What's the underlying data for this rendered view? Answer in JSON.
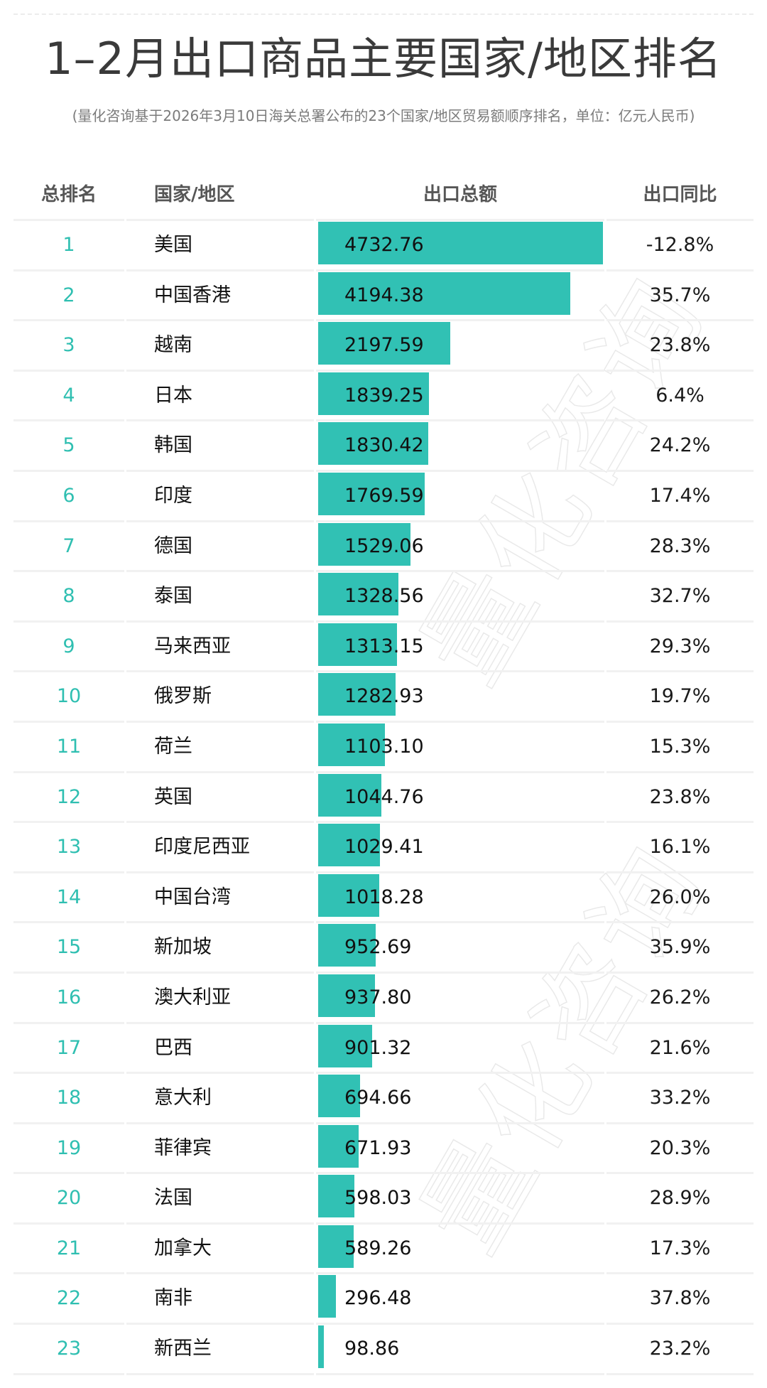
{
  "title": "1–2月出口商品主要国家/地区排名",
  "subtitle": "(量化咨询基于2026年3月10日海关总署公布的23个国家/地区贸易额顺序排名，单位：亿元人民币)",
  "watermark": "量化咨询",
  "colors": {
    "bar": "#31c1b4",
    "rank": "#2fbfb1",
    "header": "#565656",
    "divider": "#f1f1f1"
  },
  "table": {
    "headers": {
      "rank": "总排名",
      "country": "国家/地区",
      "value": "出口总额",
      "yoy": "出口同比"
    },
    "rows": [
      {
        "rank": "1",
        "country": "美国",
        "value": "4732.76",
        "yoy": "-12.8%"
      },
      {
        "rank": "2",
        "country": "中国香港",
        "value": "4194.38",
        "yoy": "35.7%"
      },
      {
        "rank": "3",
        "country": "越南",
        "value": "2197.59",
        "yoy": "23.8%"
      },
      {
        "rank": "4",
        "country": "日本",
        "value": "1839.25",
        "yoy": "6.4%"
      },
      {
        "rank": "5",
        "country": "韩国",
        "value": "1830.42",
        "yoy": "24.2%"
      },
      {
        "rank": "6",
        "country": "印度",
        "value": "1769.59",
        "yoy": "17.4%"
      },
      {
        "rank": "7",
        "country": "德国",
        "value": "1529.06",
        "yoy": "28.3%"
      },
      {
        "rank": "8",
        "country": "泰国",
        "value": "1328.56",
        "yoy": "32.7%"
      },
      {
        "rank": "9",
        "country": "马来西亚",
        "value": "1313.15",
        "yoy": "29.3%"
      },
      {
        "rank": "10",
        "country": "俄罗斯",
        "value": "1282.93",
        "yoy": "19.7%"
      },
      {
        "rank": "11",
        "country": "荷兰",
        "value": "1103.10",
        "yoy": "15.3%"
      },
      {
        "rank": "12",
        "country": "英国",
        "value": "1044.76",
        "yoy": "23.8%"
      },
      {
        "rank": "13",
        "country": "印度尼西亚",
        "value": "1029.41",
        "yoy": "16.1%"
      },
      {
        "rank": "14",
        "country": "中国台湾",
        "value": "1018.28",
        "yoy": "26.0%"
      },
      {
        "rank": "15",
        "country": "新加坡",
        "value": "952.69",
        "yoy": "35.9%"
      },
      {
        "rank": "16",
        "country": "澳大利亚",
        "value": "937.80",
        "yoy": "26.2%"
      },
      {
        "rank": "17",
        "country": "巴西",
        "value": "901.32",
        "yoy": "21.6%"
      },
      {
        "rank": "18",
        "country": "意大利",
        "value": "694.66",
        "yoy": "33.2%"
      },
      {
        "rank": "19",
        "country": "菲律宾",
        "value": "671.93",
        "yoy": "20.3%"
      },
      {
        "rank": "20",
        "country": "法国",
        "value": "598.03",
        "yoy": "28.9%"
      },
      {
        "rank": "21",
        "country": "加拿大",
        "value": "589.26",
        "yoy": "17.3%"
      },
      {
        "rank": "22",
        "country": "南非",
        "value": "296.48",
        "yoy": "37.8%"
      },
      {
        "rank": "23",
        "country": "新西兰",
        "value": "98.86",
        "yoy": "23.2%"
      }
    ]
  },
  "chart_data": {
    "type": "bar",
    "title": "1–2月出口商品主要国家/地区排名",
    "subtitle": "(量化咨询基于2026年3月10日海关总署公布的23个国家/地区贸易额顺序排名，单位：亿元人民币)",
    "orientation": "horizontal",
    "xlabel": "出口总额",
    "ylabel": "国家/地区",
    "unit": "亿元人民币",
    "categories": [
      "美国",
      "中国香港",
      "越南",
      "日本",
      "韩国",
      "印度",
      "德国",
      "泰国",
      "马来西亚",
      "俄罗斯",
      "荷兰",
      "英国",
      "印度尼西亚",
      "中国台湾",
      "新加坡",
      "澳大利亚",
      "巴西",
      "意大利",
      "菲律宾",
      "法国",
      "加拿大",
      "南非",
      "新西兰"
    ],
    "series": [
      {
        "name": "出口总额",
        "values": [
          4732.76,
          4194.38,
          2197.59,
          1839.25,
          1830.42,
          1769.59,
          1529.06,
          1328.56,
          1313.15,
          1282.93,
          1103.1,
          1044.76,
          1029.41,
          1018.28,
          952.69,
          937.8,
          901.32,
          694.66,
          671.93,
          598.03,
          589.26,
          296.48,
          98.86
        ]
      },
      {
        "name": "出口同比(%)",
        "values": [
          -12.8,
          35.7,
          23.8,
          6.4,
          24.2,
          17.4,
          28.3,
          32.7,
          29.3,
          19.7,
          15.3,
          23.8,
          16.1,
          26.0,
          35.9,
          26.2,
          21.6,
          33.2,
          20.3,
          28.9,
          17.3,
          37.8,
          23.2
        ]
      }
    ],
    "ranks": [
      1,
      2,
      3,
      4,
      5,
      6,
      7,
      8,
      9,
      10,
      11,
      12,
      13,
      14,
      15,
      16,
      17,
      18,
      19,
      20,
      21,
      22,
      23
    ],
    "legend": null,
    "grid": false
  }
}
